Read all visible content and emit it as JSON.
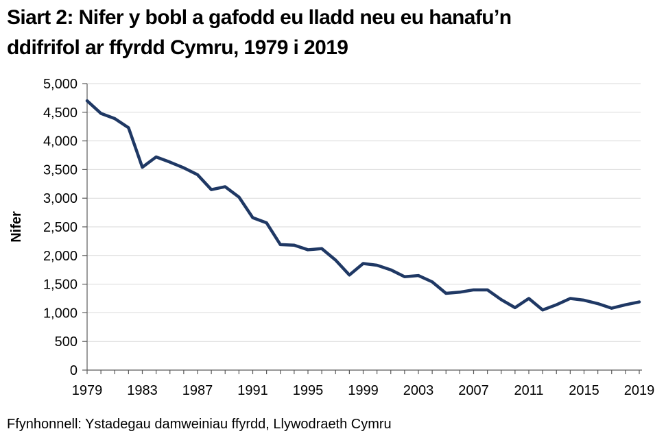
{
  "title": {
    "lines": [
      "Siart 2: Nifer y bobl a gafodd eu lladd neu eu hanafu’n",
      "ddifrifol ar ffyrdd Cymru, 1979 i 2019"
    ]
  },
  "source": {
    "text": "Ffynhonnell: Ystadegau damweiniau ffyrdd, Llywodraeth Cymru"
  },
  "chart_data": {
    "type": "line",
    "title": "Siart 2: Nifer y bobl a gafodd eu lladd neu eu hanafu’n ddifrifol ar ffyrdd Cymru, 1979 i 2019",
    "xlabel": "",
    "ylabel": "Nifer",
    "x": [
      1979,
      1980,
      1981,
      1982,
      1983,
      1984,
      1985,
      1986,
      1987,
      1988,
      1989,
      1990,
      1991,
      1992,
      1993,
      1994,
      1995,
      1996,
      1997,
      1998,
      1999,
      2000,
      2001,
      2002,
      2003,
      2004,
      2005,
      2006,
      2007,
      2008,
      2009,
      2010,
      2011,
      2012,
      2013,
      2014,
      2015,
      2016,
      2017,
      2018,
      2019
    ],
    "values": [
      4700,
      4480,
      4390,
      4230,
      3540,
      3720,
      3630,
      3530,
      3410,
      3150,
      3200,
      3020,
      2660,
      2570,
      2190,
      2180,
      2100,
      2120,
      1920,
      1660,
      1860,
      1830,
      1750,
      1630,
      1650,
      1540,
      1340,
      1360,
      1400,
      1400,
      1230,
      1090,
      1250,
      1050,
      1140,
      1250,
      1220,
      1160,
      1080,
      1140,
      1190
    ],
    "series_name": "Nifer y bobl a gafodd eu lladd neu eu hanafu’n ddifrifol",
    "ylim": [
      0,
      5000
    ],
    "ytick_step": 500,
    "ytick_labels": [
      "0",
      "500",
      "1,000",
      "1,500",
      "2,000",
      "2,500",
      "3,000",
      "3,500",
      "4,000",
      "4,500",
      "5,000"
    ],
    "xtick_label_years": [
      1979,
      1983,
      1987,
      1991,
      1995,
      1999,
      2003,
      2007,
      2011,
      2015,
      2019
    ],
    "grid": "horizontal",
    "legend": "none",
    "line_color": "#1F3864",
    "gridline_color": "#D9D9D9",
    "axis_color": "#595959",
    "text_color": "#000000",
    "background": "#FFFFFF"
  }
}
